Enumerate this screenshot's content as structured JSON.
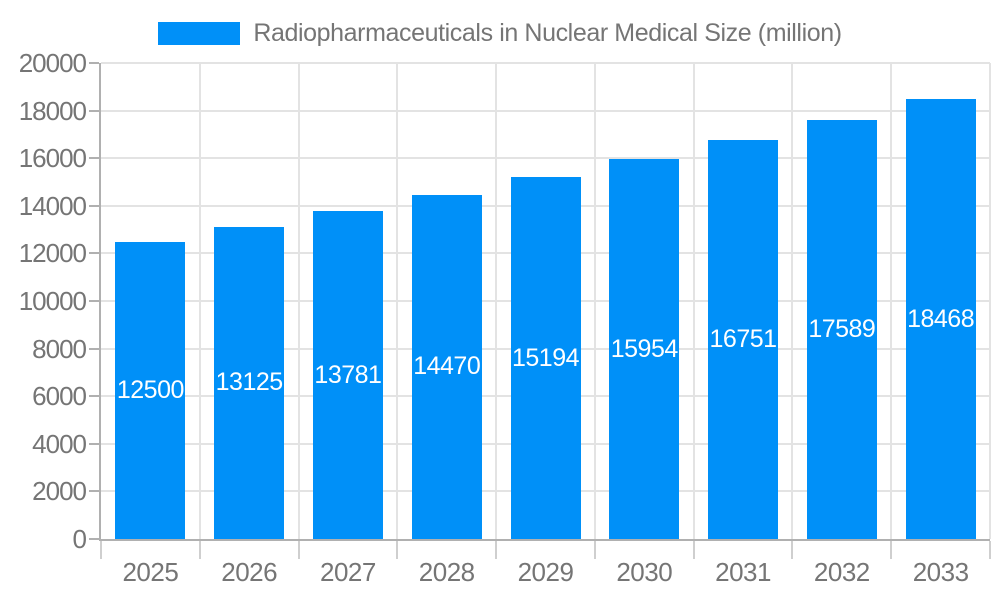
{
  "legend": {
    "label": "Radiopharmaceuticals in Nuclear Medical Size (million)"
  },
  "colors": {
    "bar": "#0090f8",
    "bar_label": "#ffffff",
    "grid_line": "#e3e3e3",
    "axis_line": "#b0b0b0",
    "tick": "#cfcfcf",
    "axis_text": "#757575",
    "background": "#ffffff"
  },
  "chart_data": {
    "type": "bar",
    "title": "Radiopharmaceuticals in Nuclear Medical Size (million)",
    "categories": [
      "2025",
      "2026",
      "2027",
      "2028",
      "2029",
      "2030",
      "2031",
      "2032",
      "2033"
    ],
    "values": [
      12500,
      13125,
      13781,
      14470,
      15194,
      15954,
      16751,
      17589,
      18468
    ],
    "xlabel": "",
    "ylabel": "",
    "ylim": [
      0,
      20000
    ],
    "ytick_step": 2000,
    "grid": true,
    "legend_position": "top",
    "value_labels": "inside-center",
    "value_label_color": "#ffffff"
  }
}
